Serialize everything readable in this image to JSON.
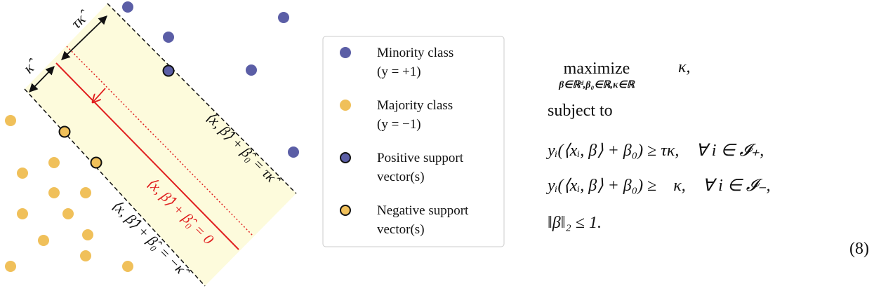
{
  "diagram": {
    "kappa_label": "κ̂",
    "tau_kappa_label": "τκ̂",
    "upper_boundary": "⟨x, β̂⟩ + β̂₀ = τκ̂",
    "decision_boundary": "⟨x, β̂⟩ + β̂₀ = 0",
    "lower_boundary": "⟨x, β̂⟩ + β̂₀ = −κ̂"
  },
  "legend": [
    {
      "line1": "Minority class",
      "line2": "(y = +1)"
    },
    {
      "line1": "Majority class",
      "line2": "(y = −1)"
    },
    {
      "line1": "Positive support",
      "line2": "vector(s)"
    },
    {
      "line1": "Negative support",
      "line2": "vector(s)"
    }
  ],
  "equation": {
    "objective": "maximize",
    "under": "β∈ℝᵈ,β₀∈ℝ,κ∈ℝ",
    "objective_var": "κ,",
    "subject_to": "subject to",
    "constraints": [
      "yᵢ(⟨xᵢ, β⟩ + β₀) ≥ τκ,    ∀ i ∈ 𝓘₊,",
      "yᵢ(⟨xᵢ, β⟩ + β₀) ≥    κ,    ∀ i ∈ 𝓘₋,",
      "‖β‖₂ ≤ 1."
    ],
    "number": "(8)"
  }
}
